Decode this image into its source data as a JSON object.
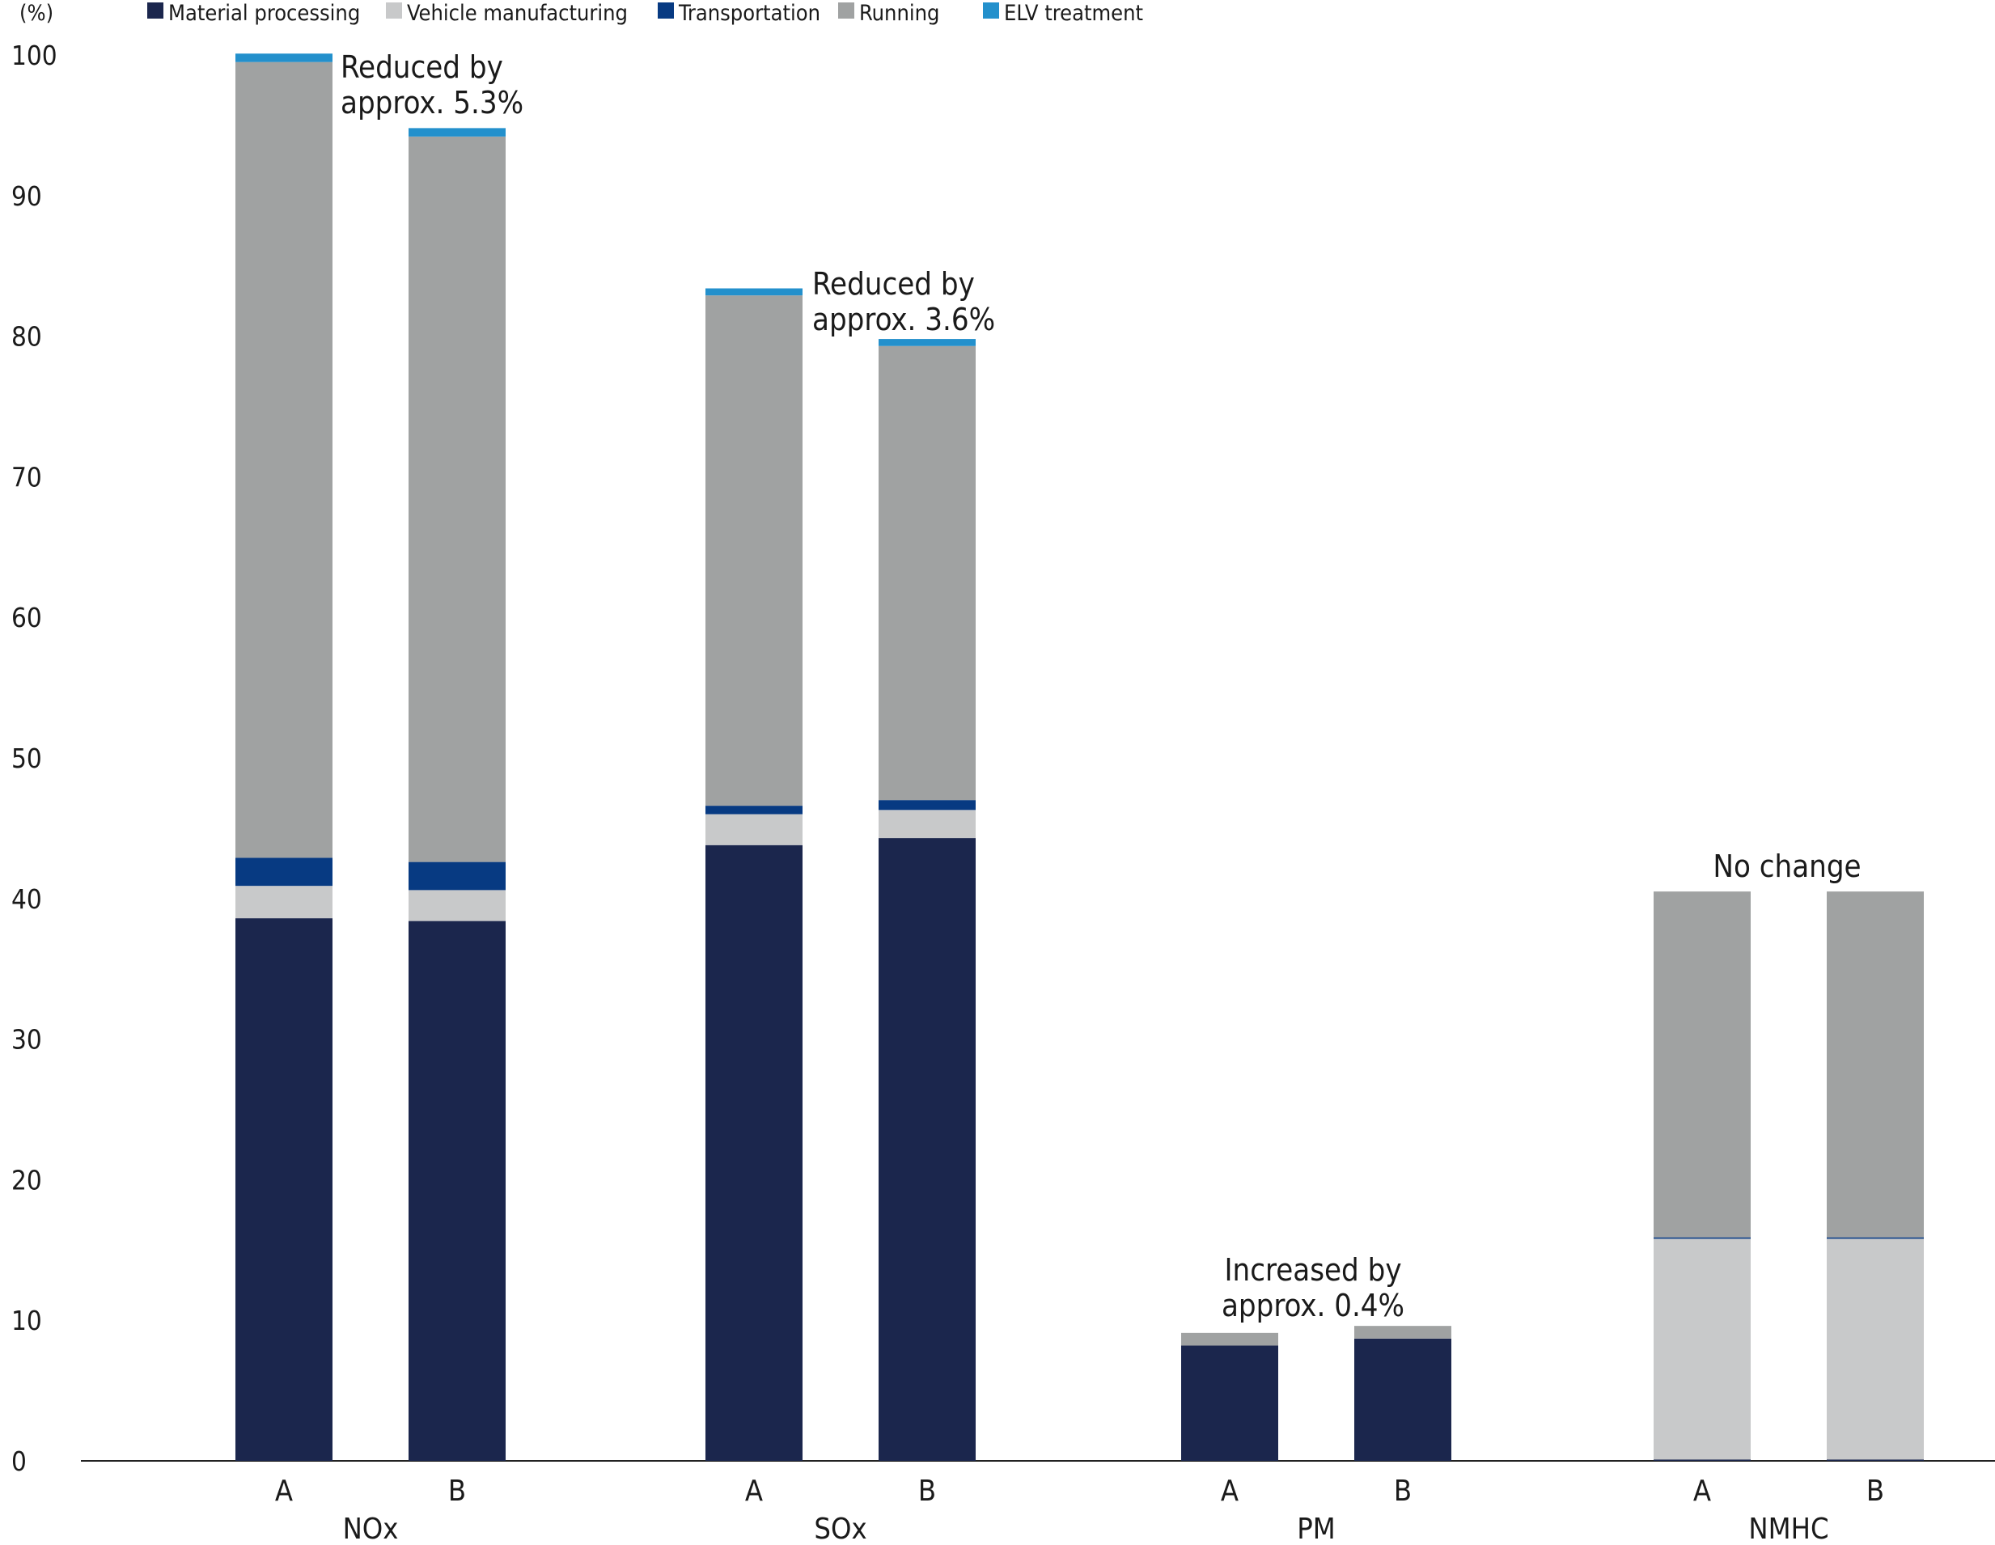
{
  "chart_data": {
    "type": "bar",
    "stacked": true,
    "ylabel": "(%)",
    "ylim": [
      0,
      100
    ],
    "yticks": [
      0,
      10,
      20,
      30,
      40,
      50,
      60,
      70,
      80,
      90,
      100
    ],
    "grid": false,
    "legend_position": "top-left",
    "groups": [
      "NOx",
      "SOx",
      "PM",
      "NMHC"
    ],
    "bar_labels": [
      "A",
      "B"
    ],
    "series": [
      {
        "name": "Material processing",
        "color": "#1b264d",
        "values": [
          [
            38.6,
            38.4
          ],
          [
            43.8,
            44.3
          ],
          [
            8.2,
            8.7
          ],
          [
            0.1,
            0.1
          ]
        ]
      },
      {
        "name": "Vehicle manufacturing",
        "color": "#c8c9ca",
        "values": [
          [
            2.3,
            2.2
          ],
          [
            2.2,
            2.0
          ],
          [
            0.0,
            0.0
          ],
          [
            15.7,
            15.7
          ]
        ]
      },
      {
        "name": "Transportation",
        "color": "#073a82",
        "values": [
          [
            2.0,
            2.0
          ],
          [
            0.6,
            0.7
          ],
          [
            0.0,
            0.0
          ],
          [
            0.1,
            0.1
          ]
        ]
      },
      {
        "name": "Running",
        "color": "#a0a2a2",
        "values": [
          [
            56.6,
            51.6
          ],
          [
            36.3,
            32.3
          ],
          [
            0.9,
            0.9
          ],
          [
            24.6,
            24.6
          ]
        ]
      },
      {
        "name": "ELV treatment",
        "color": "#2390cc",
        "values": [
          [
            0.6,
            0.6
          ],
          [
            0.5,
            0.5
          ],
          [
            0.0,
            0.0
          ],
          [
            0.0,
            0.0
          ]
        ]
      }
    ],
    "annotations": [
      {
        "group": "NOx",
        "lines": [
          "Reduced by",
          "approx. 5.3%"
        ]
      },
      {
        "group": "SOx",
        "lines": [
          "Reduced by",
          "approx. 3.6%"
        ]
      },
      {
        "group": "PM",
        "lines": [
          "Increased by",
          "approx. 0.4%"
        ]
      },
      {
        "group": "NMHC",
        "lines": [
          "No change"
        ]
      }
    ]
  }
}
